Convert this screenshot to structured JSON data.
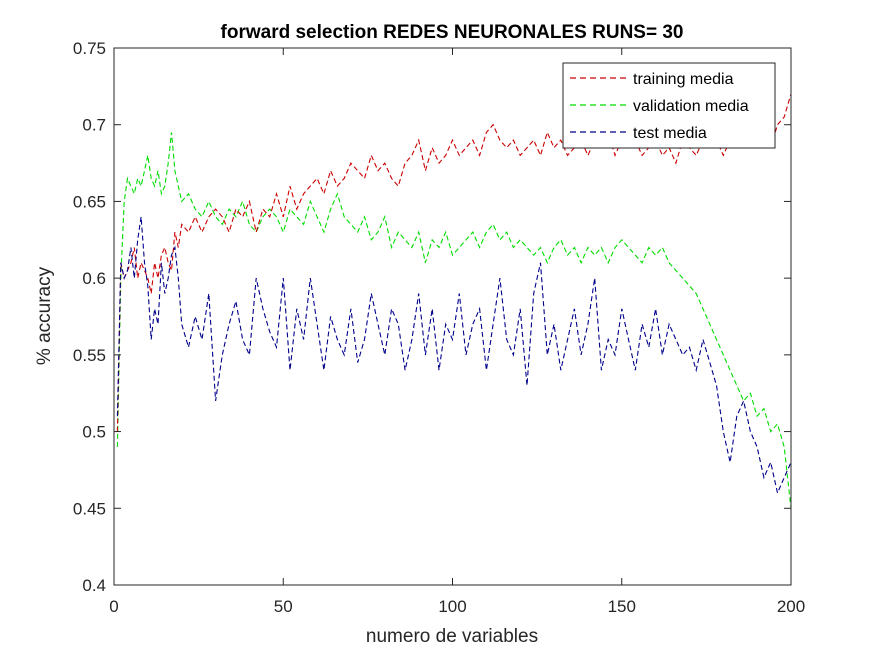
{
  "chart_data": {
    "type": "line",
    "title": "forward selection REDES NEURONALES  RUNS= 30",
    "xlabel": "numero de variables",
    "ylabel": "% accuracy",
    "xlim": [
      0,
      200
    ],
    "ylim": [
      0.4,
      0.75
    ],
    "xticks": [
      "0",
      "50",
      "100",
      "150",
      "200"
    ],
    "yticks": [
      "0.4",
      "0.45",
      "0.5",
      "0.55",
      "0.6",
      "0.65",
      "0.7",
      "0.75"
    ],
    "grid": false,
    "legend_position": "top-right",
    "series": [
      {
        "name": "training media",
        "color": "#cc0000",
        "style": "dashed",
        "x": [
          1,
          2,
          3,
          4,
          5,
          6,
          7,
          8,
          9,
          10,
          11,
          12,
          13,
          14,
          15,
          16,
          17,
          18,
          19,
          20,
          22,
          24,
          26,
          28,
          30,
          32,
          34,
          36,
          38,
          40,
          42,
          44,
          46,
          48,
          50,
          52,
          54,
          56,
          58,
          60,
          62,
          64,
          66,
          68,
          70,
          72,
          74,
          76,
          78,
          80,
          82,
          84,
          86,
          88,
          90,
          92,
          94,
          96,
          98,
          100,
          102,
          104,
          106,
          108,
          110,
          112,
          114,
          116,
          118,
          120,
          122,
          124,
          126,
          128,
          130,
          132,
          134,
          136,
          138,
          140,
          142,
          144,
          146,
          148,
          150,
          152,
          154,
          156,
          158,
          160,
          162,
          164,
          166,
          168,
          170,
          172,
          174,
          176,
          178,
          180,
          182,
          184,
          186,
          188,
          190,
          192,
          194,
          196,
          198,
          200
        ],
        "y": [
          0.5,
          0.61,
          0.6,
          0.605,
          0.61,
          0.62,
          0.6,
          0.61,
          0.605,
          0.6,
          0.59,
          0.61,
          0.6,
          0.615,
          0.62,
          0.61,
          0.605,
          0.63,
          0.62,
          0.635,
          0.63,
          0.64,
          0.63,
          0.64,
          0.645,
          0.64,
          0.63,
          0.645,
          0.64,
          0.65,
          0.63,
          0.645,
          0.64,
          0.655,
          0.64,
          0.66,
          0.645,
          0.655,
          0.66,
          0.665,
          0.655,
          0.67,
          0.66,
          0.665,
          0.675,
          0.67,
          0.665,
          0.68,
          0.67,
          0.675,
          0.665,
          0.66,
          0.675,
          0.68,
          0.69,
          0.67,
          0.685,
          0.675,
          0.68,
          0.69,
          0.68,
          0.685,
          0.69,
          0.68,
          0.695,
          0.7,
          0.69,
          0.685,
          0.69,
          0.68,
          0.685,
          0.69,
          0.68,
          0.695,
          0.685,
          0.69,
          0.68,
          0.685,
          0.69,
          0.68,
          0.69,
          0.685,
          0.695,
          0.68,
          0.69,
          0.685,
          0.69,
          0.68,
          0.685,
          0.69,
          0.68,
          0.685,
          0.675,
          0.69,
          0.685,
          0.68,
          0.69,
          0.685,
          0.69,
          0.68,
          0.69,
          0.685,
          0.69,
          0.695,
          0.685,
          0.69,
          0.685,
          0.7,
          0.705,
          0.72
        ]
      },
      {
        "name": "validation media",
        "color": "#00dd00",
        "style": "dashed",
        "x": [
          1,
          2,
          3,
          4,
          5,
          6,
          7,
          8,
          9,
          10,
          11,
          12,
          13,
          14,
          15,
          16,
          17,
          18,
          19,
          20,
          22,
          24,
          26,
          28,
          30,
          32,
          34,
          36,
          38,
          40,
          42,
          44,
          46,
          48,
          50,
          52,
          54,
          56,
          58,
          60,
          62,
          64,
          66,
          68,
          70,
          72,
          74,
          76,
          78,
          80,
          82,
          84,
          86,
          88,
          90,
          92,
          94,
          96,
          98,
          100,
          102,
          104,
          106,
          108,
          110,
          112,
          114,
          116,
          118,
          120,
          122,
          124,
          126,
          128,
          130,
          132,
          134,
          136,
          138,
          140,
          142,
          144,
          146,
          148,
          150,
          152,
          154,
          156,
          158,
          160,
          162,
          164,
          166,
          168,
          170,
          172,
          174,
          176,
          178,
          180,
          182,
          184,
          186,
          188,
          190,
          192,
          194,
          196,
          198,
          200
        ],
        "y": [
          0.49,
          0.6,
          0.65,
          0.665,
          0.66,
          0.655,
          0.665,
          0.66,
          0.67,
          0.68,
          0.665,
          0.66,
          0.67,
          0.655,
          0.66,
          0.675,
          0.695,
          0.67,
          0.66,
          0.65,
          0.655,
          0.645,
          0.64,
          0.65,
          0.64,
          0.635,
          0.645,
          0.64,
          0.65,
          0.635,
          0.63,
          0.64,
          0.645,
          0.64,
          0.63,
          0.645,
          0.64,
          0.635,
          0.65,
          0.64,
          0.63,
          0.645,
          0.655,
          0.64,
          0.635,
          0.63,
          0.64,
          0.625,
          0.63,
          0.64,
          0.62,
          0.63,
          0.625,
          0.62,
          0.63,
          0.61,
          0.625,
          0.62,
          0.63,
          0.615,
          0.62,
          0.625,
          0.63,
          0.62,
          0.63,
          0.635,
          0.625,
          0.63,
          0.62,
          0.625,
          0.62,
          0.615,
          0.62,
          0.61,
          0.62,
          0.625,
          0.615,
          0.62,
          0.61,
          0.62,
          0.615,
          0.62,
          0.61,
          0.62,
          0.625,
          0.62,
          0.615,
          0.61,
          0.62,
          0.615,
          0.62,
          0.61,
          0.605,
          0.6,
          0.595,
          0.59,
          0.58,
          0.57,
          0.56,
          0.55,
          0.54,
          0.53,
          0.52,
          0.525,
          0.51,
          0.515,
          0.5,
          0.505,
          0.49,
          0.45
        ]
      },
      {
        "name": "test media",
        "color": "#00008b",
        "style": "dashed",
        "x": [
          1,
          2,
          3,
          4,
          5,
          6,
          7,
          8,
          9,
          10,
          11,
          12,
          13,
          14,
          15,
          16,
          17,
          18,
          19,
          20,
          22,
          24,
          26,
          28,
          30,
          32,
          34,
          36,
          38,
          40,
          42,
          44,
          46,
          48,
          50,
          52,
          54,
          56,
          58,
          60,
          62,
          64,
          66,
          68,
          70,
          72,
          74,
          76,
          78,
          80,
          82,
          84,
          86,
          88,
          90,
          92,
          94,
          96,
          98,
          100,
          102,
          104,
          106,
          108,
          110,
          112,
          114,
          116,
          118,
          120,
          122,
          124,
          126,
          128,
          130,
          132,
          134,
          136,
          138,
          140,
          142,
          144,
          146,
          148,
          150,
          152,
          154,
          156,
          158,
          160,
          162,
          164,
          166,
          168,
          170,
          172,
          174,
          176,
          178,
          180,
          182,
          184,
          186,
          188,
          190,
          192,
          194,
          196,
          198,
          200
        ],
        "y": [
          0.51,
          0.61,
          0.6,
          0.605,
          0.62,
          0.6,
          0.625,
          0.64,
          0.61,
          0.595,
          0.56,
          0.58,
          0.57,
          0.61,
          0.59,
          0.6,
          0.615,
          0.62,
          0.6,
          0.57,
          0.555,
          0.575,
          0.56,
          0.59,
          0.52,
          0.55,
          0.57,
          0.585,
          0.56,
          0.55,
          0.6,
          0.58,
          0.565,
          0.555,
          0.6,
          0.54,
          0.58,
          0.56,
          0.6,
          0.57,
          0.54,
          0.575,
          0.56,
          0.55,
          0.58,
          0.545,
          0.56,
          0.59,
          0.57,
          0.55,
          0.58,
          0.57,
          0.54,
          0.56,
          0.59,
          0.55,
          0.58,
          0.54,
          0.57,
          0.56,
          0.59,
          0.55,
          0.57,
          0.58,
          0.54,
          0.57,
          0.6,
          0.56,
          0.55,
          0.58,
          0.53,
          0.59,
          0.61,
          0.55,
          0.57,
          0.54,
          0.56,
          0.58,
          0.55,
          0.57,
          0.6,
          0.54,
          0.56,
          0.55,
          0.58,
          0.56,
          0.54,
          0.57,
          0.555,
          0.58,
          0.55,
          0.57,
          0.56,
          0.55,
          0.555,
          0.54,
          0.56,
          0.545,
          0.53,
          0.5,
          0.48,
          0.51,
          0.52,
          0.5,
          0.49,
          0.47,
          0.48,
          0.46,
          0.47,
          0.48
        ]
      }
    ]
  }
}
